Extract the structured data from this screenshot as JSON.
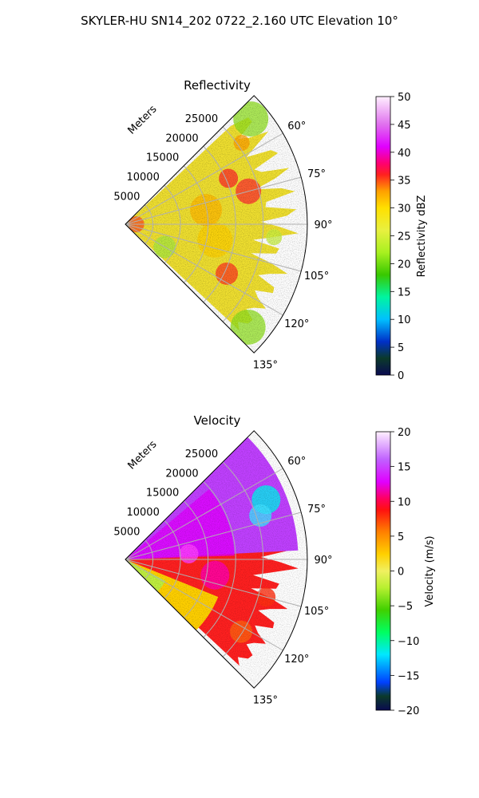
{
  "figure": {
    "suptitle": "SKYLER-HU  SN14_202  0722_2.160 UTC Elevation 10°"
  },
  "colors": {
    "grid": "#b0b0b0",
    "axis": "#000000"
  },
  "chart_data": [
    {
      "type": "heatmap",
      "title": "Reflectivity",
      "radial_label": "Meters",
      "radial_ticks": [
        "5000",
        "10000",
        "15000",
        "20000",
        "25000"
      ],
      "radial_tick_values": [
        5000,
        10000,
        15000,
        20000,
        25000
      ],
      "theta_ticks": [
        "60°",
        "75°",
        "90°",
        "105°",
        "120°",
        "135°"
      ],
      "theta_tick_values": [
        60,
        75,
        90,
        105,
        120,
        135
      ],
      "theta_range": [
        45,
        135
      ],
      "r_range": [
        0,
        33000
      ],
      "colorbar": {
        "label": "Reflectivity dBZ",
        "ticks": [
          "0",
          "5",
          "10",
          "15",
          "20",
          "25",
          "30",
          "35",
          "40",
          "45",
          "50"
        ],
        "range": [
          0,
          50
        ]
      },
      "grid": true
    },
    {
      "type": "heatmap",
      "title": "Velocity",
      "radial_label": "Meters",
      "radial_ticks": [
        "5000",
        "10000",
        "15000",
        "20000",
        "25000"
      ],
      "radial_tick_values": [
        5000,
        10000,
        15000,
        20000,
        25000
      ],
      "theta_ticks": [
        "60°",
        "75°",
        "90°",
        "105°",
        "120°",
        "135°"
      ],
      "theta_tick_values": [
        60,
        75,
        90,
        105,
        120,
        135
      ],
      "theta_range": [
        45,
        135
      ],
      "r_range": [
        0,
        33000
      ],
      "colorbar": {
        "label": "Velocity (m/s)",
        "ticks": [
          "−20",
          "−15",
          "−10",
          "−5",
          "0",
          "5",
          "10",
          "15",
          "20"
        ],
        "range": [
          -20,
          20
        ]
      },
      "grid": true
    }
  ]
}
